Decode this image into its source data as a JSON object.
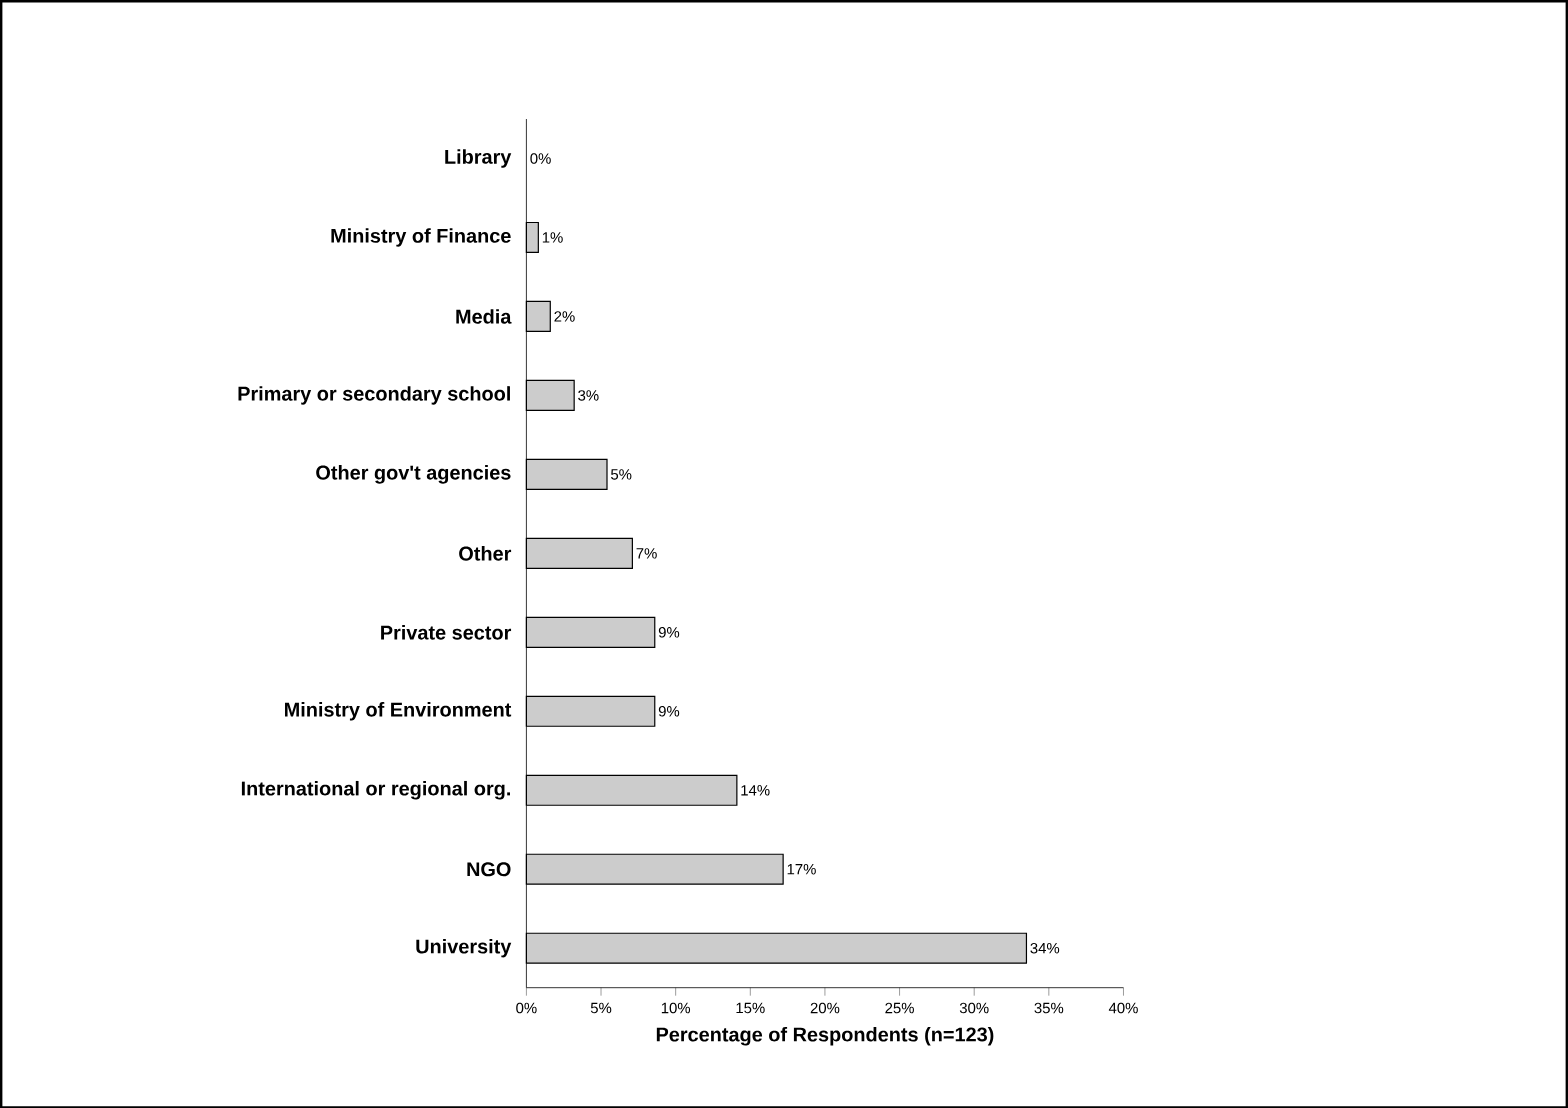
{
  "chart_data": {
    "type": "bar",
    "orientation": "horizontal",
    "xlabel": "Percentage of Respondents (n=123)",
    "categories": [
      "Library",
      "Ministry of Finance",
      "Media",
      "Primary or secondary school",
      "Other gov't agencies",
      "Other",
      "Private sector",
      "Ministry of Environment",
      "International or regional org.",
      "NGO",
      "University"
    ],
    "values": [
      0,
      0.8,
      1.6,
      3.2,
      5.4,
      7.1,
      8.6,
      8.6,
      14.1,
      17.2,
      33.5
    ],
    "value_labels": [
      "0%",
      "1%",
      "2%",
      "3%",
      "5%",
      "7%",
      "9%",
      "9%",
      "14%",
      "17%",
      "34%"
    ],
    "color": "#cccccc",
    "xlim": [
      0,
      40
    ],
    "xticks": [
      {
        "value": 0,
        "label": "0%"
      },
      {
        "value": 5,
        "label": "5%"
      },
      {
        "value": 10,
        "label": "10%"
      },
      {
        "value": 15,
        "label": "15%"
      },
      {
        "value": 20,
        "label": "20%"
      },
      {
        "value": 25,
        "label": "25%"
      },
      {
        "value": 30,
        "label": "30%"
      },
      {
        "value": 35,
        "label": "35%"
      },
      {
        "value": 40,
        "label": "40%"
      }
    ],
    "grid": false
  }
}
